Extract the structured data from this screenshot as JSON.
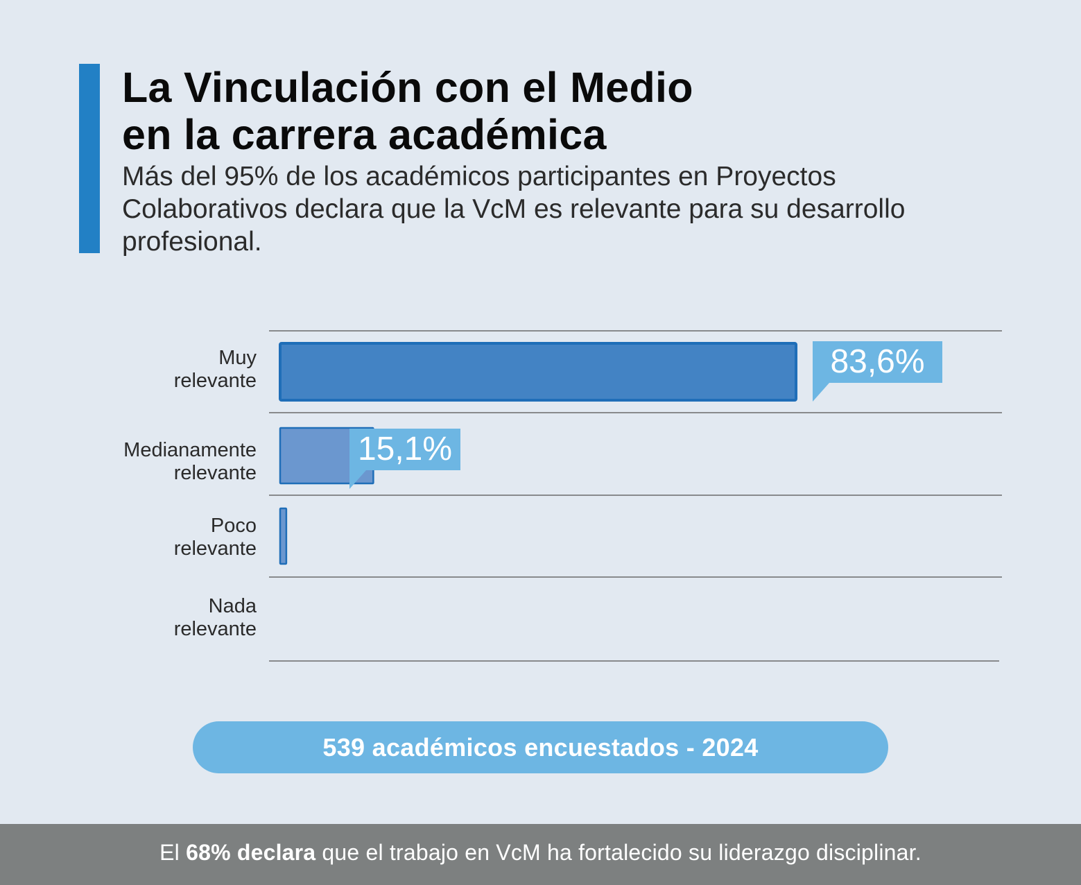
{
  "header": {
    "title_line1": "La Vinculación con el Medio",
    "title_line2": "en la carrera académica",
    "subtitle": "Más del 95% de los académicos participantes en Proyectos Colaborativos declara que la VcM es relevante para su desarrollo profesional."
  },
  "chart_data": {
    "type": "bar",
    "orientation": "horizontal",
    "categories": [
      {
        "line1": "Muy",
        "line2": "relevante"
      },
      {
        "line1": "Medianamente",
        "line2": "relevante"
      },
      {
        "line1": "Poco",
        "line2": "relevante"
      },
      {
        "line1": "Nada",
        "line2": "relevante"
      }
    ],
    "values": [
      83.6,
      15.1,
      1.0,
      0
    ],
    "value_labels": [
      "83,6%",
      "15,1%",
      "",
      ""
    ],
    "xlim": [
      0,
      100
    ],
    "unit": "%",
    "colors": {
      "muy": "#4383c4",
      "medianamente": "#6b97cf",
      "poco": "#6b97cf",
      "border": "#1f6eb8",
      "callout": "#6db6e3",
      "gridline": "#6b6b6b"
    }
  },
  "sample": {
    "label": "539 académicos encuestados - 2024"
  },
  "footer": {
    "prefix": "El ",
    "highlight": "68% declara",
    "suffix": " que el trabajo en VcM ha fortalecido su liderazgo disciplinar."
  },
  "theme": {
    "background": "#e2e9f1",
    "accent": "#2280c5",
    "footer_bg": "#7d8080"
  }
}
